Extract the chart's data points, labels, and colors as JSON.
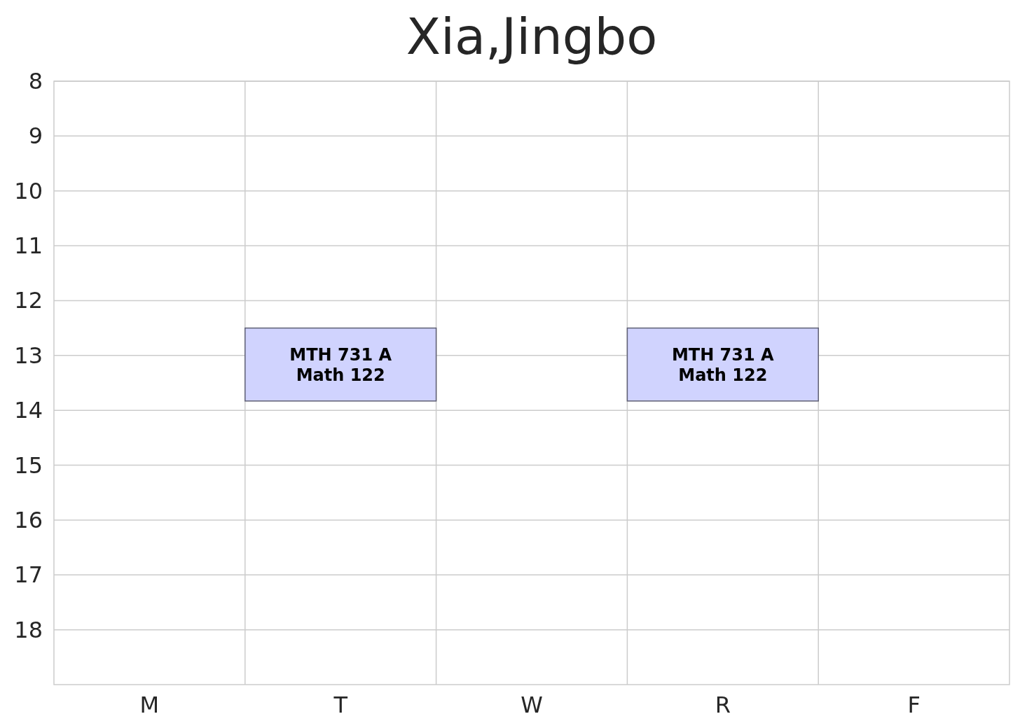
{
  "chart_data": {
    "type": "bar",
    "title": "Xia,Jingbo",
    "categories": [
      "M",
      "T",
      "W",
      "R",
      "F"
    ],
    "base": [
      null,
      12.5,
      null,
      12.5,
      null
    ],
    "values": [
      null,
      1.33,
      null,
      1.33,
      null
    ],
    "value_labels": [
      null,
      "MTH 731 A\nMath 122",
      null,
      "MTH 731 A\nMath 122",
      null
    ],
    "color": "#d0d3fe",
    "ylim": [
      19,
      8
    ],
    "yticks": [
      8,
      9,
      10,
      11,
      12,
      13,
      14,
      15,
      16,
      17,
      18
    ],
    "grid": true
  }
}
